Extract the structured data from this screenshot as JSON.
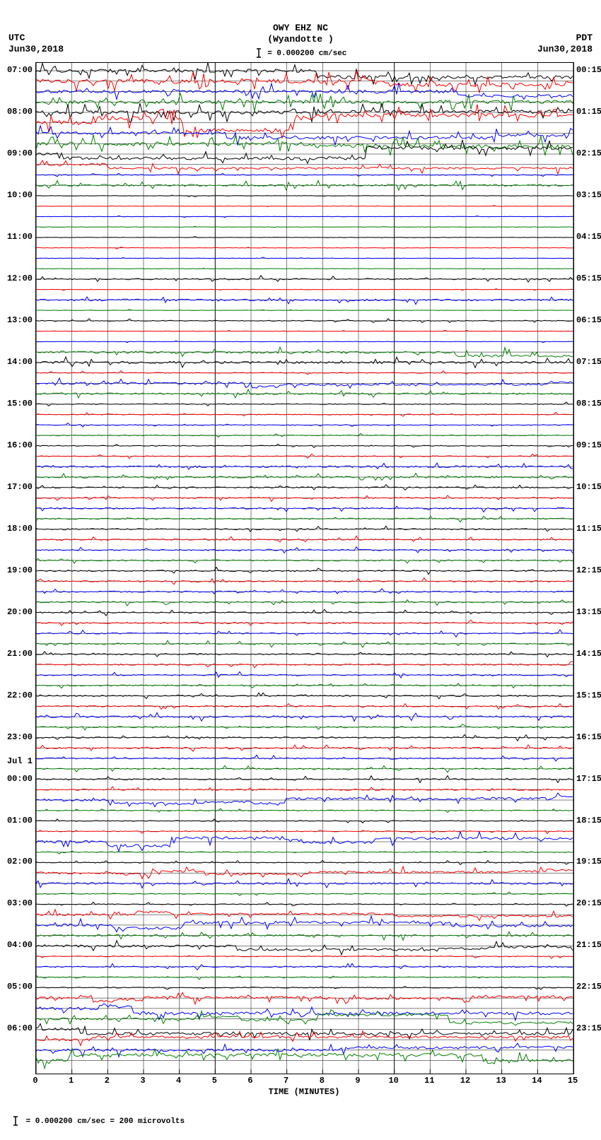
{
  "header": {
    "title_line1": "OWY EHZ NC",
    "title_line2": "(Wyandotte )",
    "scale_text": "= 0.000200 cm/sec",
    "left_tz": "UTC",
    "left_date": "Jun30,2018",
    "right_tz": "PDT",
    "right_date": "Jun30,2018"
  },
  "footer": {
    "text": "= 0.000200 cm/sec =    200 microvolts"
  },
  "plot": {
    "x_min": 0,
    "x_max": 15,
    "x_ticks": [
      0,
      1,
      2,
      3,
      4,
      5,
      6,
      7,
      8,
      9,
      10,
      11,
      12,
      13,
      14,
      15
    ],
    "x_title": "TIME (MINUTES)",
    "n_traces": 96,
    "left_labels": [
      {
        "row": 0,
        "text": "07:00"
      },
      {
        "row": 4,
        "text": "08:00"
      },
      {
        "row": 8,
        "text": "09:00"
      },
      {
        "row": 12,
        "text": "10:00"
      },
      {
        "row": 16,
        "text": "11:00"
      },
      {
        "row": 20,
        "text": "12:00"
      },
      {
        "row": 24,
        "text": "13:00"
      },
      {
        "row": 28,
        "text": "14:00"
      },
      {
        "row": 32,
        "text": "15:00"
      },
      {
        "row": 36,
        "text": "16:00"
      },
      {
        "row": 40,
        "text": "17:00"
      },
      {
        "row": 44,
        "text": "18:00"
      },
      {
        "row": 48,
        "text": "19:00"
      },
      {
        "row": 52,
        "text": "20:00"
      },
      {
        "row": 56,
        "text": "21:00"
      },
      {
        "row": 60,
        "text": "22:00"
      },
      {
        "row": 64,
        "text": "23:00"
      },
      {
        "row": 67,
        "text": "Jul 1",
        "small": true
      },
      {
        "row": 68,
        "text": "00:00"
      },
      {
        "row": 72,
        "text": "01:00"
      },
      {
        "row": 76,
        "text": "02:00"
      },
      {
        "row": 80,
        "text": "03:00"
      },
      {
        "row": 84,
        "text": "04:00"
      },
      {
        "row": 88,
        "text": "05:00"
      },
      {
        "row": 92,
        "text": "06:00"
      }
    ],
    "right_labels": [
      {
        "row": 0,
        "text": "00:15"
      },
      {
        "row": 4,
        "text": "01:15"
      },
      {
        "row": 8,
        "text": "02:15"
      },
      {
        "row": 12,
        "text": "03:15"
      },
      {
        "row": 16,
        "text": "04:15"
      },
      {
        "row": 20,
        "text": "05:15"
      },
      {
        "row": 24,
        "text": "06:15"
      },
      {
        "row": 28,
        "text": "07:15"
      },
      {
        "row": 32,
        "text": "08:15"
      },
      {
        "row": 36,
        "text": "09:15"
      },
      {
        "row": 40,
        "text": "10:15"
      },
      {
        "row": 44,
        "text": "11:15"
      },
      {
        "row": 48,
        "text": "12:15"
      },
      {
        "row": 52,
        "text": "13:15"
      },
      {
        "row": 56,
        "text": "14:15"
      },
      {
        "row": 60,
        "text": "15:15"
      },
      {
        "row": 64,
        "text": "16:15"
      },
      {
        "row": 68,
        "text": "17:15"
      },
      {
        "row": 72,
        "text": "18:15"
      },
      {
        "row": 76,
        "text": "19:15"
      },
      {
        "row": 80,
        "text": "20:15"
      },
      {
        "row": 84,
        "text": "21:15"
      },
      {
        "row": 88,
        "text": "22:15"
      },
      {
        "row": 92,
        "text": "23:15"
      }
    ],
    "trace_colors": [
      "#000000",
      "#ff0000",
      "#0000ff",
      "#008000"
    ],
    "grid_color": "#000000",
    "background": "#ffffff",
    "trace_activity": {
      "0": 8,
      "1": 9,
      "2": 7,
      "3": 8,
      "4": 8,
      "5": 9,
      "6": 7,
      "7": 9,
      "8": 7,
      "9": 5,
      "10": 2,
      "11": 4,
      "12": 1,
      "13": 1,
      "14": 1,
      "15": 1,
      "16": 1,
      "17": 1,
      "18": 1,
      "19": 1,
      "20": 3,
      "21": 1,
      "22": 4,
      "23": 1,
      "24": 2,
      "25": 1,
      "26": 1,
      "27": 5,
      "28": 5,
      "29": 2,
      "30": 5,
      "31": 4,
      "32": 2,
      "33": 2,
      "34": 2,
      "35": 2,
      "36": 2,
      "37": 2,
      "38": 4,
      "39": 4,
      "40": 3,
      "41": 3,
      "42": 3,
      "43": 3,
      "44": 3,
      "45": 3,
      "46": 3,
      "47": 3,
      "48": 3,
      "49": 3,
      "50": 3,
      "51": 3,
      "52": 3,
      "53": 3,
      "54": 3,
      "55": 3,
      "56": 3,
      "57": 3,
      "58": 3,
      "59": 3,
      "60": 3,
      "61": 3,
      "62": 4,
      "63": 3,
      "64": 3,
      "65": 3,
      "66": 3,
      "67": 3,
      "68": 3,
      "69": 3,
      "70": 5,
      "71": 2,
      "72": 2,
      "73": 2,
      "74": 6,
      "75": 2,
      "76": 2,
      "77": 5,
      "78": 4,
      "79": 2,
      "80": 2,
      "81": 5,
      "82": 6,
      "83": 4,
      "84": 5,
      "85": 2,
      "86": 3,
      "87": 2,
      "88": 2,
      "89": 6,
      "90": 7,
      "91": 5,
      "92": 6,
      "93": 5,
      "94": 6,
      "95": 7
    }
  }
}
